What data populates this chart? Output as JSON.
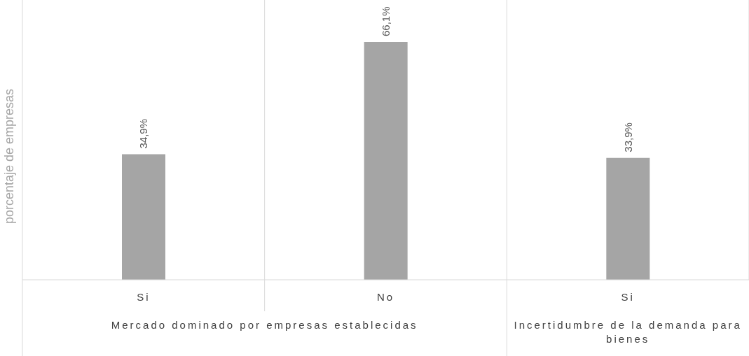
{
  "chart_data": {
    "type": "bar",
    "ylabel": "porcentaje de empresas",
    "categories": [
      "Si",
      "No",
      "Si"
    ],
    "values": [
      34.9,
      66.1,
      33.9
    ],
    "value_labels": [
      "34,9%",
      "66,1%",
      "33,9%"
    ],
    "color": "#a5a5a5",
    "annotations": [
      "Mercado dominado por empresas establecidas",
      "Incertidumbre de la demanda para bienes"
    ]
  }
}
